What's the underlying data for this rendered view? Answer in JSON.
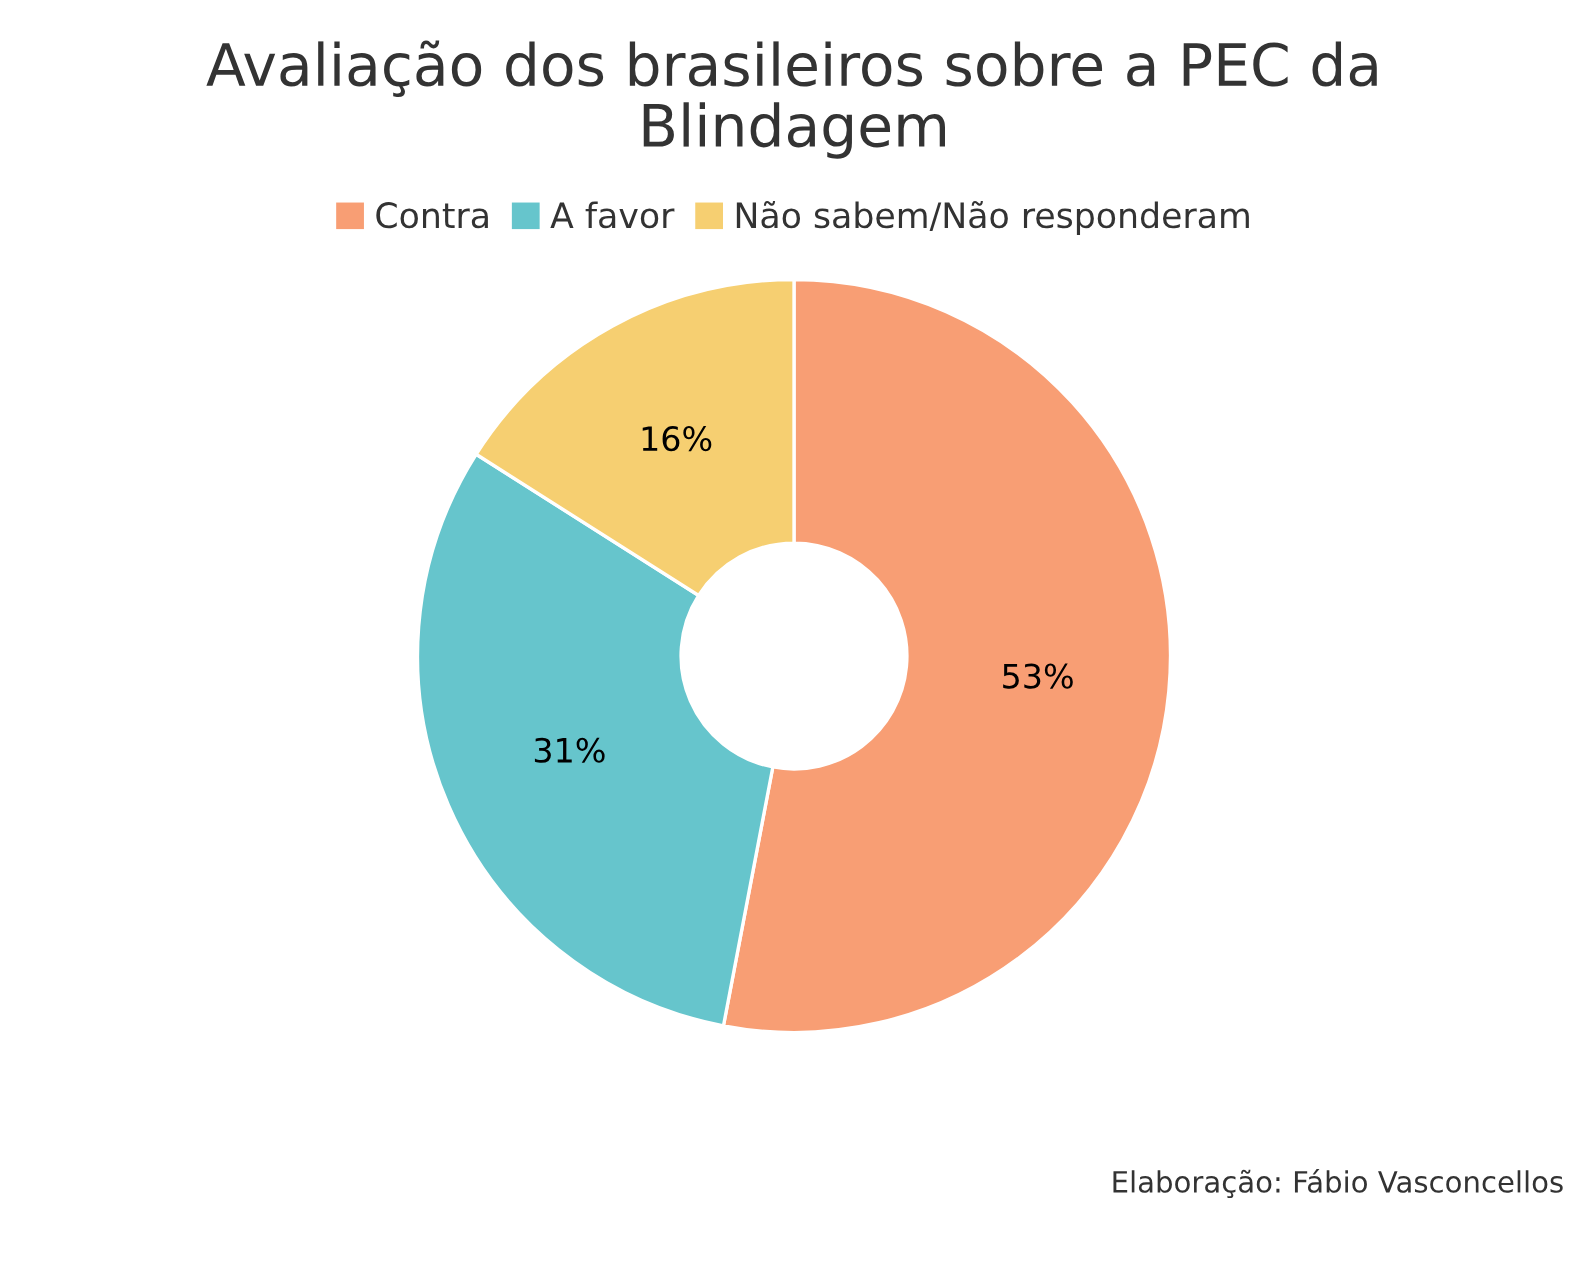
{
  "chart_data": {
    "type": "donut",
    "title": "Avaliação dos brasileiros sobre a PEC da\nBlindagem",
    "categories": [
      "Contra",
      "A favor",
      "Não sabem/Não responderam"
    ],
    "values": [
      53,
      31,
      16
    ],
    "colors": [
      "#f89e74",
      "#66c5cc",
      "#f6cf71"
    ],
    "value_labels": [
      "53%",
      "31%",
      "16%"
    ],
    "legend": "top",
    "annotations": [
      "Elaboração: Fábio Vasconcellos"
    ]
  }
}
